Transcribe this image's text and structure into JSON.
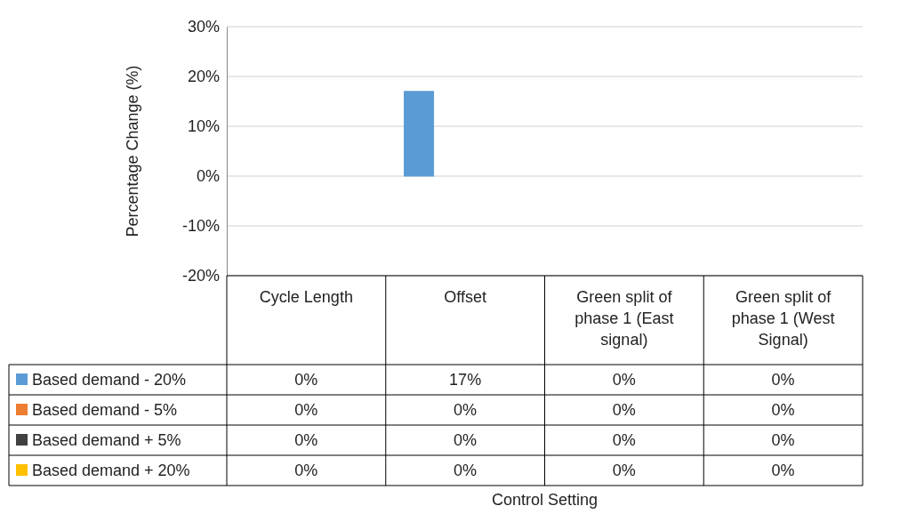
{
  "chart_data": {
    "type": "bar",
    "ylabel": "Percentage Change (%)",
    "annotations": [
      "Control Setting"
    ],
    "categories": [
      "Cycle Length",
      "Offset",
      "Green split of phase 1 (East signal)",
      "Green split of phase 1 (West Signal)"
    ],
    "series": [
      {
        "name": "Based demand - 20%",
        "color": "#5b9bd5",
        "values": [
          0,
          17,
          0,
          0
        ],
        "value_labels": [
          "0%",
          "17%",
          "0%",
          "0%"
        ]
      },
      {
        "name": "Based demand - 5%",
        "color": "#ed7d31",
        "values": [
          0,
          0,
          0,
          0
        ],
        "value_labels": [
          "0%",
          "0%",
          "0%",
          "0%"
        ]
      },
      {
        "name": "Based demand + 5%",
        "color": "#404040",
        "values": [
          0,
          0,
          0,
          0
        ],
        "value_labels": [
          "0%",
          "0%",
          "0%",
          "0%"
        ]
      },
      {
        "name": "Based demand + 20%",
        "color": "#ffc000",
        "values": [
          0,
          0,
          0,
          0
        ],
        "value_labels": [
          "0%",
          "0%",
          "0%",
          "0%"
        ]
      }
    ],
    "ylim": [
      -20,
      30
    ],
    "yticks": [
      {
        "value": -20,
        "label": "-20%"
      },
      {
        "value": -10,
        "label": "-10%"
      },
      {
        "value": 0,
        "label": "0%"
      },
      {
        "value": 10,
        "label": "10%"
      },
      {
        "value": 20,
        "label": "20%"
      },
      {
        "value": 30,
        "label": "30%"
      }
    ],
    "grid": "y",
    "legend": "bottom"
  }
}
